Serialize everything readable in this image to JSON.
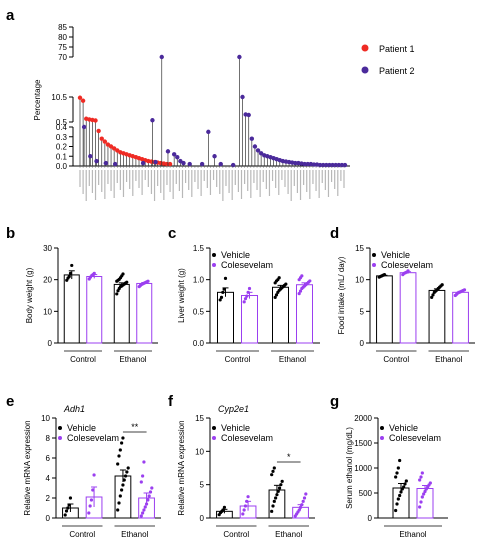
{
  "colors": {
    "patient1": "#ef2b24",
    "patient2": "#4b2a9b",
    "vehicle": "#000000",
    "colesevelam": "#9b3ff0"
  },
  "panels": {
    "a": "a",
    "b": "b",
    "c": "c",
    "d": "d",
    "e": "e",
    "f": "f",
    "g": "g"
  },
  "chart_data": [
    {
      "id": "a",
      "type": "scatter",
      "style": "lollipop",
      "ylabel": "Percentage",
      "yticks_labels": [
        "0.0",
        "0.1",
        "0.2",
        "0.3",
        "0.4",
        "0.5",
        "10.5",
        "70",
        "75",
        "80",
        "85"
      ],
      "axis_segments": [
        [
          0.0,
          0.4
        ],
        [
          0.5,
          10.5
        ],
        [
          70,
          85
        ]
      ],
      "legend": {
        "position": "top-right",
        "entries": [
          "Patient 1",
          "Patient 2"
        ]
      },
      "note": "x-axis taxa names illegible at this resolution",
      "series": [
        {
          "name": "Patient 1",
          "color": "#ef2b24",
          "points": [
            [
              1,
              10.2
            ],
            [
              2,
              9.0
            ],
            [
              3,
              1.8
            ],
            [
              4,
              1.5
            ],
            [
              5,
              1.3
            ],
            [
              6,
              1.1
            ],
            [
              7,
              0.36
            ],
            [
              8,
              0.28
            ],
            [
              9,
              0.25
            ],
            [
              10,
              0.22
            ],
            [
              11,
              0.2
            ],
            [
              12,
              0.18
            ],
            [
              13,
              0.16
            ],
            [
              14,
              0.14
            ],
            [
              15,
              0.13
            ],
            [
              16,
              0.12
            ],
            [
              17,
              0.11
            ],
            [
              18,
              0.1
            ],
            [
              19,
              0.09
            ],
            [
              20,
              0.08
            ],
            [
              21,
              0.07
            ],
            [
              22,
              0.06
            ],
            [
              23,
              0.05
            ],
            [
              24,
              0.045
            ],
            [
              25,
              0.04
            ],
            [
              26,
              0.035
            ],
            [
              27,
              0.03
            ],
            [
              28,
              0.025
            ],
            [
              29,
              0.02
            ],
            [
              30,
              0.02
            ]
          ]
        },
        {
          "name": "Patient 2",
          "color": "#4b2a9b",
          "points": [
            [
              2,
              0.4
            ],
            [
              4,
              0.1
            ],
            [
              6,
              0.05
            ],
            [
              9,
              0.03
            ],
            [
              12,
              0.02
            ],
            [
              21,
              0.03
            ],
            [
              24,
              1.2
            ],
            [
              25,
              0.04
            ],
            [
              27,
              70
            ],
            [
              29,
              0.15
            ],
            [
              31,
              0.12
            ],
            [
              32,
              0.09
            ],
            [
              33,
              0.05
            ],
            [
              34,
              0.03
            ],
            [
              36,
              0.02
            ],
            [
              40,
              0.02
            ],
            [
              42,
              0.35
            ],
            [
              44,
              0.1
            ],
            [
              46,
              0.02
            ],
            [
              50,
              0.01
            ],
            [
              52,
              70
            ],
            [
              53,
              10.5
            ],
            [
              54,
              3.5
            ],
            [
              55,
              3.3
            ],
            [
              56,
              0.28
            ],
            [
              57,
              0.2
            ],
            [
              58,
              0.16
            ],
            [
              59,
              0.13
            ],
            [
              60,
              0.11
            ],
            [
              61,
              0.1
            ],
            [
              62,
              0.09
            ],
            [
              63,
              0.08
            ],
            [
              64,
              0.07
            ],
            [
              65,
              0.06
            ],
            [
              66,
              0.05
            ],
            [
              67,
              0.045
            ],
            [
              68,
              0.04
            ],
            [
              69,
              0.035
            ],
            [
              70,
              0.03
            ],
            [
              71,
              0.03
            ],
            [
              72,
              0.025
            ],
            [
              73,
              0.02
            ],
            [
              74,
              0.02
            ],
            [
              75,
              0.02
            ],
            [
              76,
              0.015
            ],
            [
              77,
              0.015
            ],
            [
              78,
              0.01
            ],
            [
              79,
              0.01
            ],
            [
              80,
              0.01
            ],
            [
              81,
              0.01
            ],
            [
              82,
              0.01
            ],
            [
              83,
              0.01
            ],
            [
              84,
              0.01
            ],
            [
              85,
              0.01
            ],
            [
              86,
              0.01
            ]
          ]
        }
      ]
    },
    {
      "id": "b",
      "type": "bar",
      "ylabel": "Body weight (g)",
      "ylim": [
        0,
        30
      ],
      "yticks": [
        "0",
        "10",
        "20",
        "30"
      ],
      "groups": [
        "Control",
        "Ethanol"
      ],
      "legend": {
        "position": "none",
        "entries": []
      },
      "series": [
        {
          "name": "Vehicle",
          "color": "#000000"
        },
        {
          "name": "Colesevelam",
          "color": "#9b3ff0"
        }
      ],
      "bars": [
        {
          "group": 0,
          "series": 0,
          "mean": 21.5,
          "sem": 1.3,
          "points": [
            19.8,
            20.5,
            21.0,
            22.0,
            24.5
          ]
        },
        {
          "group": 0,
          "series": 1,
          "mean": 21.0,
          "sem": 0.6,
          "points": [
            20.2,
            20.8,
            21.3,
            21.6,
            22.0
          ]
        },
        {
          "group": 1,
          "series": 0,
          "mean": 18.5,
          "sem": 0.5,
          "points": [
            15.5,
            16.5,
            17.2,
            17.8,
            18.0,
            18.3,
            18.6,
            18.9,
            19.2,
            19.5,
            19.8,
            20.1,
            20.6,
            21.2,
            21.8
          ]
        },
        {
          "group": 1,
          "series": 1,
          "mean": 18.8,
          "sem": 0.3,
          "points": [
            17.8,
            18.2,
            18.5,
            18.7,
            18.9,
            19.1,
            19.3,
            19.5
          ]
        }
      ]
    },
    {
      "id": "c",
      "type": "bar",
      "ylabel": "Liver weight (g)",
      "ylim": [
        0,
        1.5
      ],
      "yticks": [
        "0.0",
        "0.5",
        "1.0",
        "1.5"
      ],
      "groups": [
        "Control",
        "Ethanol"
      ],
      "legend": {
        "position": "top-left",
        "entries": [
          "Vehicle",
          "Colesevelam"
        ]
      },
      "series": [
        {
          "name": "Vehicle",
          "color": "#000000"
        },
        {
          "name": "Colesevelam",
          "color": "#9b3ff0"
        }
      ],
      "bars": [
        {
          "group": 0,
          "series": 0,
          "mean": 0.8,
          "sem": 0.07,
          "points": [
            0.68,
            0.72,
            0.8,
            0.85,
            1.02
          ]
        },
        {
          "group": 0,
          "series": 1,
          "mean": 0.75,
          "sem": 0.05,
          "points": [
            0.65,
            0.7,
            0.74,
            0.8,
            0.86
          ]
        },
        {
          "group": 1,
          "series": 0,
          "mean": 0.88,
          "sem": 0.03,
          "points": [
            0.72,
            0.76,
            0.8,
            0.83,
            0.85,
            0.87,
            0.89,
            0.91,
            0.93,
            0.95,
            0.98,
            1.0,
            1.03
          ]
        },
        {
          "group": 1,
          "series": 1,
          "mean": 0.92,
          "sem": 0.03,
          "points": [
            0.78,
            0.82,
            0.86,
            0.88,
            0.9,
            0.92,
            0.94,
            0.96,
            0.98,
            1.0,
            1.03,
            1.06
          ]
        }
      ]
    },
    {
      "id": "d",
      "type": "bar",
      "ylabel": "Food intake (mL/ day)",
      "ylim": [
        0,
        15
      ],
      "yticks": [
        "0",
        "5",
        "10",
        "15"
      ],
      "groups": [
        "Control",
        "Ethanol"
      ],
      "legend": {
        "position": "top-left",
        "entries": [
          "Vehicle",
          "Colesevelam"
        ]
      },
      "series": [
        {
          "name": "Vehicle",
          "color": "#000000"
        },
        {
          "name": "Colesevelam",
          "color": "#9b3ff0"
        }
      ],
      "bars": [
        {
          "group": 0,
          "series": 0,
          "mean": 10.6,
          "sem": 0.1,
          "points": [
            10.4,
            10.5,
            10.6,
            10.7,
            10.8
          ]
        },
        {
          "group": 0,
          "series": 1,
          "mean": 11.1,
          "sem": 0.15,
          "points": [
            10.8,
            11.0,
            11.1,
            11.2,
            11.4
          ]
        },
        {
          "group": 1,
          "series": 0,
          "mean": 8.3,
          "sem": 0.25,
          "points": [
            7.2,
            7.6,
            8.0,
            8.2,
            8.4,
            8.6,
            8.8,
            9.0,
            9.2
          ]
        },
        {
          "group": 1,
          "series": 1,
          "mean": 8.0,
          "sem": 0.15,
          "points": [
            7.5,
            7.7,
            7.9,
            8.0,
            8.1,
            8.2,
            8.3,
            8.4
          ]
        }
      ]
    },
    {
      "id": "e",
      "type": "bar",
      "title": "Adh1",
      "ylabel": "Relative mRNA expression",
      "ylim": [
        0,
        10
      ],
      "yticks": [
        "0",
        "2",
        "4",
        "6",
        "8",
        "10"
      ],
      "groups": [
        "Control",
        "Ethanol"
      ],
      "legend": {
        "position": "top-left",
        "entries": [
          "Vehicle",
          "Colesevelam"
        ]
      },
      "significance": {
        "label": "**",
        "between": [
          [
            1,
            0
          ],
          [
            1,
            1
          ]
        ]
      },
      "series": [
        {
          "name": "Vehicle",
          "color": "#000000"
        },
        {
          "name": "Colesevelam",
          "color": "#9b3ff0"
        }
      ],
      "bars": [
        {
          "group": 0,
          "series": 0,
          "mean": 1.0,
          "sem": 0.4,
          "points": [
            0.3,
            0.7,
            1.0,
            1.3,
            2.0
          ]
        },
        {
          "group": 0,
          "series": 1,
          "mean": 2.1,
          "sem": 1.0,
          "points": [
            0.5,
            1.2,
            1.8,
            2.8,
            4.3
          ]
        },
        {
          "group": 1,
          "series": 0,
          "mean": 4.2,
          "sem": 0.6,
          "points": [
            0.8,
            1.5,
            2.2,
            2.8,
            3.3,
            3.8,
            4.2,
            4.6,
            5.0,
            5.4,
            6.2,
            6.8,
            7.5,
            8.0
          ]
        },
        {
          "group": 1,
          "series": 1,
          "mean": 2.0,
          "sem": 0.5,
          "points": [
            0.2,
            0.5,
            0.8,
            1.1,
            1.4,
            1.8,
            2.2,
            2.6,
            3.0,
            3.6,
            4.2,
            5.6
          ]
        }
      ]
    },
    {
      "id": "f",
      "type": "bar",
      "title": "Cyp2e1",
      "ylabel": "Relative mRNA expression",
      "ylim": [
        0,
        15
      ],
      "yticks": [
        "0",
        "5",
        "10",
        "15"
      ],
      "groups": [
        "Control",
        "Ethanol"
      ],
      "legend": {
        "position": "top-left",
        "entries": [
          "Vehicle",
          "Colesevelam"
        ]
      },
      "significance": {
        "label": "*",
        "between": [
          [
            1,
            0
          ],
          [
            1,
            1
          ]
        ]
      },
      "series": [
        {
          "name": "Vehicle",
          "color": "#000000"
        },
        {
          "name": "Colesevelam",
          "color": "#9b3ff0"
        }
      ],
      "bars": [
        {
          "group": 0,
          "series": 0,
          "mean": 1.0,
          "sem": 0.3,
          "points": [
            0.5,
            0.8,
            1.0,
            1.2,
            1.6
          ]
        },
        {
          "group": 0,
          "series": 1,
          "mean": 1.8,
          "sem": 0.7,
          "points": [
            0.6,
            1.2,
            1.8,
            2.5,
            3.2
          ]
        },
        {
          "group": 1,
          "series": 0,
          "mean": 4.2,
          "sem": 0.7,
          "points": [
            1.0,
            1.8,
            2.5,
            3.0,
            3.5,
            4.0,
            4.5,
            5.0,
            5.5,
            6.5,
            7.0,
            7.5
          ]
        },
        {
          "group": 1,
          "series": 1,
          "mean": 1.6,
          "sem": 0.4,
          "points": [
            0.3,
            0.6,
            0.9,
            1.2,
            1.6,
            2.0,
            2.5,
            3.0,
            3.6
          ]
        }
      ]
    },
    {
      "id": "g",
      "type": "bar",
      "ylabel": "Serum ethanol (mg/dL)",
      "ylim": [
        0,
        2000
      ],
      "yticks": [
        "0",
        "500",
        "1000",
        "1500",
        "2000"
      ],
      "groups": [
        "Ethanol"
      ],
      "legend": {
        "position": "top-left",
        "entries": [
          "Vehicle",
          "Colesevelam"
        ]
      },
      "series": [
        {
          "name": "Vehicle",
          "color": "#000000"
        },
        {
          "name": "Colesevelam",
          "color": "#9b3ff0"
        }
      ],
      "bars": [
        {
          "group": 0,
          "series": 0,
          "mean": 600,
          "sem": 90,
          "points": [
            150,
            280,
            380,
            450,
            520,
            580,
            620,
            680,
            740,
            820,
            900,
            1000,
            1150
          ]
        },
        {
          "group": 0,
          "series": 1,
          "mean": 590,
          "sem": 60,
          "points": [
            220,
            320,
            420,
            480,
            530,
            580,
            620,
            660,
            700,
            760,
            820,
            900
          ]
        }
      ]
    }
  ]
}
